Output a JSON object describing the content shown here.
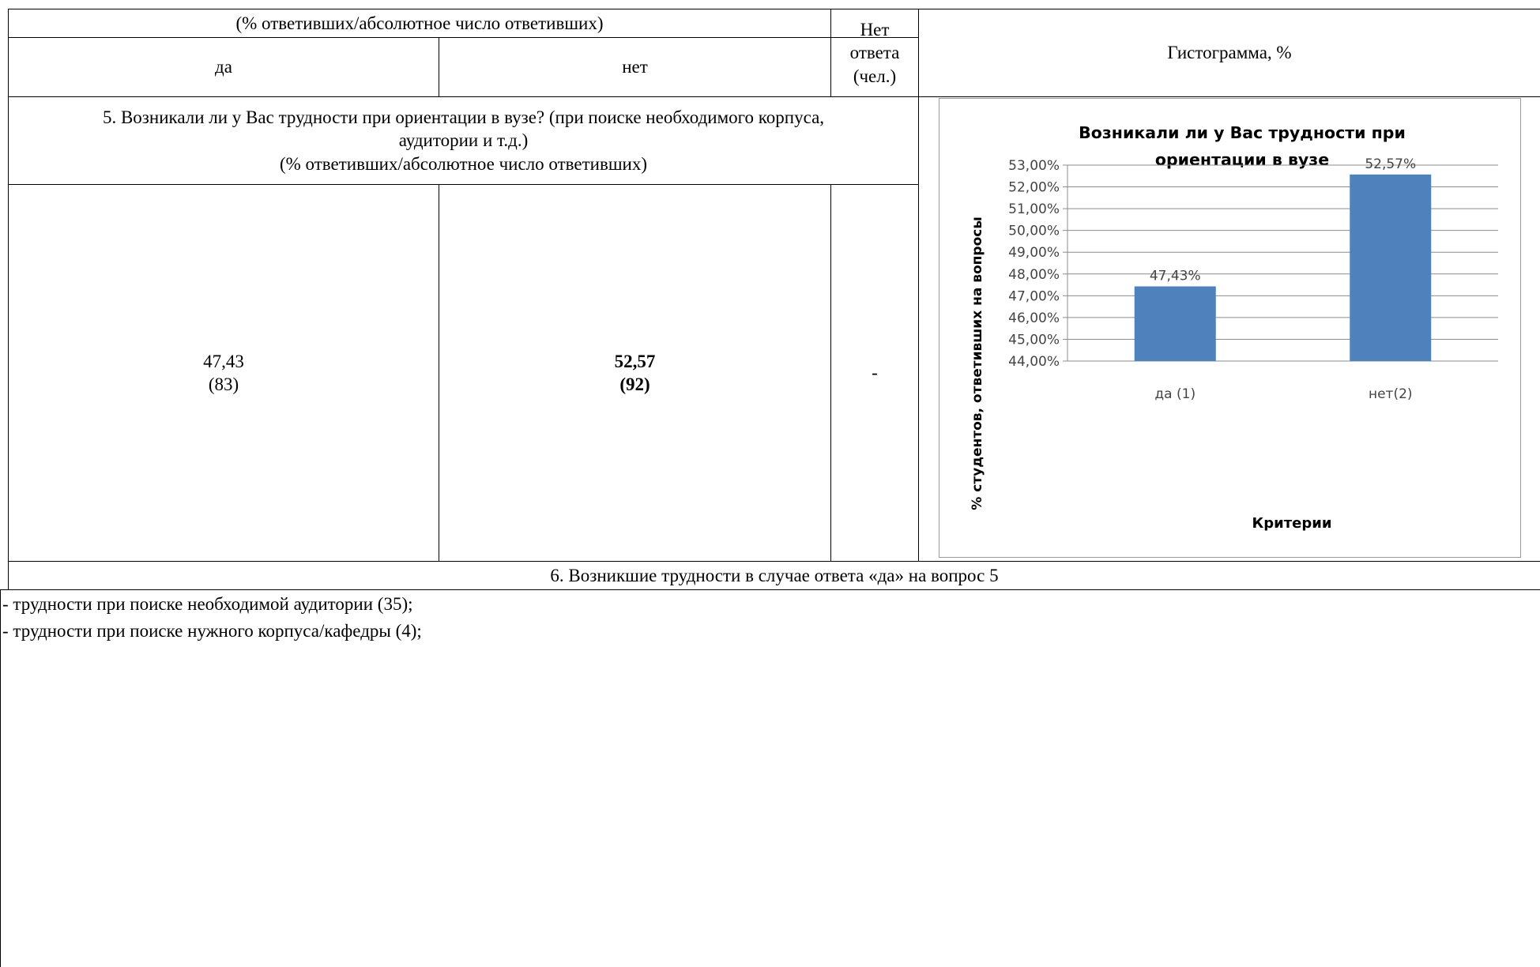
{
  "header": {
    "group_caption": "(% ответивших/абсолютное число ответивших)",
    "col_yes": "да",
    "col_no": "нет",
    "col_noanswer": "Нет ответа (чел.)",
    "col_histogram": "Гистограмма, %"
  },
  "question5": {
    "text": "5. Возникали ли у Вас трудности при ориентации в вузе? (при поиске необходимого корпуса, аудитории и т.д.)",
    "caption": "(% ответивших/абсолютное число ответивших)",
    "yes_percent": "47,43",
    "yes_count": "(83)",
    "no_percent": "52,57",
    "no_count": "(92)",
    "no_answer": "-"
  },
  "question6": {
    "title": "6. Возникшие трудности в случае ответа «да» на вопрос 5",
    "items": [
      "- трудности при поиске необходимой аудитории (35);",
      "- трудности при поиске нужного корпуса/кафедры (4);"
    ]
  },
  "chart_data": {
    "type": "bar",
    "title_lines": [
      "Возникали ли у Вас трудности при",
      "ориентации в вузе"
    ],
    "categories": [
      "да (1)",
      "нет(2)"
    ],
    "values": [
      47.43,
      52.57
    ],
    "data_labels": [
      "47,43%",
      "52,57%"
    ],
    "xlabel": "Критерии",
    "ylabel": "% студентов, ответивших на вопросы",
    "ylim": [
      44,
      53
    ],
    "yticks": [
      "44,00%",
      "45,00%",
      "46,00%",
      "47,00%",
      "48,00%",
      "49,00%",
      "50,00%",
      "51,00%",
      "52,00%",
      "53,00%"
    ],
    "grid": true,
    "bar_color": "#4f81bd",
    "grid_color": "#8c8c8c"
  }
}
